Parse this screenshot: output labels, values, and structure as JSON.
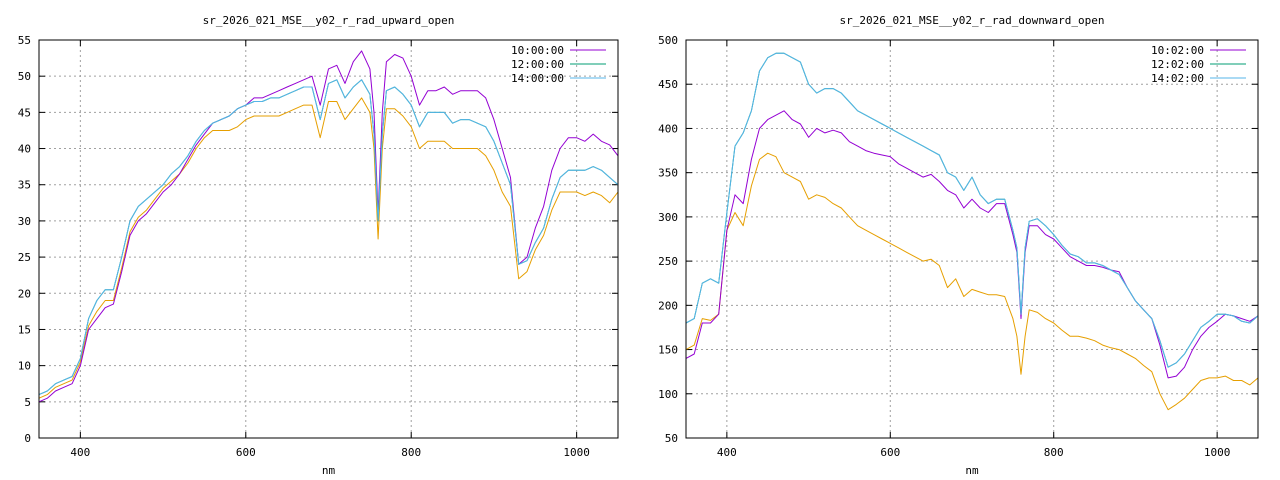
{
  "chart_data": [
    {
      "type": "line",
      "title": "sr_2026_021_MSE__y02_r_rad_upward_open",
      "xlabel": "nm",
      "ylabel": "",
      "xlim": [
        350,
        1050
      ],
      "ylim": [
        0,
        55
      ],
      "xticks": [
        400,
        600,
        800,
        1000
      ],
      "yticks": [
        0,
        5,
        10,
        15,
        20,
        25,
        30,
        35,
        40,
        45,
        50,
        55
      ],
      "grid": true,
      "legend_position": "top-right",
      "x": [
        350,
        360,
        370,
        380,
        390,
        400,
        410,
        420,
        430,
        440,
        450,
        460,
        470,
        480,
        490,
        500,
        510,
        520,
        530,
        540,
        550,
        560,
        570,
        580,
        590,
        600,
        610,
        620,
        630,
        640,
        650,
        660,
        670,
        680,
        690,
        700,
        710,
        720,
        730,
        740,
        750,
        755,
        760,
        765,
        770,
        780,
        790,
        800,
        810,
        820,
        830,
        840,
        850,
        860,
        870,
        880,
        890,
        900,
        910,
        920,
        930,
        940,
        950,
        960,
        970,
        980,
        990,
        1000,
        1010,
        1020,
        1030,
        1040,
        1050
      ],
      "series": [
        {
          "name": "10:00:00",
          "color": "#9400d3",
          "values": [
            5,
            5.5,
            6.5,
            7,
            7.5,
            10,
            15,
            16.5,
            18,
            18.5,
            23,
            28,
            30,
            31,
            32.5,
            34,
            35,
            36.5,
            38.5,
            40.5,
            42,
            43.5,
            44,
            44.5,
            45.5,
            46,
            47,
            47,
            47.5,
            48,
            48.5,
            49,
            49.5,
            50,
            46,
            51,
            51.5,
            49,
            52,
            53.5,
            51,
            45,
            31,
            45,
            52,
            53,
            52.5,
            50,
            46,
            48,
            48,
            48.5,
            47.5,
            48,
            48,
            48,
            47,
            44,
            40,
            36,
            24,
            25,
            29,
            32,
            37,
            40,
            41.5,
            41.5,
            41,
            42,
            41,
            40.5,
            39
          ]
        },
        {
          "name": "12:00:00",
          "color": "#009e73",
          "values": [
            6,
            6.5,
            7.5,
            8,
            8.5,
            11,
            16.5,
            19,
            20.5,
            20.5,
            25,
            30,
            32,
            33,
            34,
            35,
            36.5,
            37.5,
            39,
            41,
            42.5,
            43.5,
            44,
            44.5,
            45.5,
            46,
            46.5,
            46.5,
            47,
            47,
            47.5,
            48,
            48.5,
            48.5,
            44,
            49,
            49.5,
            47,
            48.5,
            49.5,
            47.5,
            42,
            30,
            42,
            48,
            48.5,
            47.5,
            46,
            43,
            45,
            45,
            45,
            43.5,
            44,
            44,
            43.5,
            43,
            41,
            38,
            35,
            24,
            24.5,
            27,
            29,
            33,
            36,
            37,
            37,
            37,
            37.5,
            37,
            36,
            35
          ]
        },
        {
          "name": "14:00:00",
          "color": "#56b4e9",
          "values": [
            6,
            6.5,
            7.5,
            8,
            8.5,
            11,
            16.5,
            19,
            20.5,
            20.5,
            25,
            30,
            32,
            33,
            34,
            35,
            36.5,
            37.5,
            39,
            41,
            42.5,
            43.5,
            44,
            44.5,
            45.5,
            46,
            46.5,
            46.5,
            47,
            47,
            47.5,
            48,
            48.5,
            48.5,
            44,
            49,
            49.5,
            47,
            48.5,
            49.5,
            47.5,
            42,
            30,
            42,
            48,
            48.5,
            47.5,
            46,
            43,
            45,
            45,
            45,
            43.5,
            44,
            44,
            43.5,
            43,
            41,
            38,
            35,
            24,
            24.5,
            27,
            29,
            33,
            36,
            37,
            37,
            37,
            37.5,
            37,
            36,
            35
          ]
        },
        {
          "name": "",
          "color": "#e69f00",
          "values": [
            5.5,
            6,
            7,
            7.5,
            8,
            10.5,
            15.5,
            17.5,
            19,
            19,
            23.5,
            28.5,
            30.5,
            31.5,
            33,
            34.5,
            35.5,
            36.5,
            38,
            40,
            41.5,
            42.5,
            42.5,
            42.5,
            43,
            44,
            44.5,
            44.5,
            44.5,
            44.5,
            45,
            45.5,
            46,
            46,
            41.5,
            46.5,
            46.5,
            44,
            45.5,
            47,
            45,
            40,
            27.5,
            40,
            45.5,
            45.5,
            44.5,
            43,
            40,
            41,
            41,
            41,
            40,
            40,
            40,
            40,
            39,
            37,
            34,
            32,
            22,
            23,
            26,
            28,
            31.5,
            34,
            34,
            34,
            33.5,
            34,
            33.5,
            32.5,
            34
          ]
        }
      ]
    },
    {
      "type": "line",
      "title": "sr_2026_021_MSE__y02_r_rad_downward_open",
      "xlabel": "nm",
      "ylabel": "",
      "xlim": [
        350,
        1050
      ],
      "ylim": [
        50,
        500
      ],
      "xticks": [
        400,
        600,
        800,
        1000
      ],
      "yticks": [
        50,
        100,
        150,
        200,
        250,
        300,
        350,
        400,
        450,
        500
      ],
      "grid": true,
      "legend_position": "top-right",
      "x": [
        350,
        360,
        370,
        380,
        390,
        400,
        410,
        420,
        430,
        440,
        450,
        460,
        470,
        480,
        490,
        500,
        510,
        520,
        530,
        540,
        550,
        560,
        570,
        580,
        590,
        600,
        610,
        620,
        630,
        640,
        650,
        660,
        670,
        680,
        690,
        700,
        710,
        720,
        730,
        740,
        750,
        755,
        760,
        765,
        770,
        780,
        790,
        800,
        810,
        820,
        830,
        840,
        850,
        860,
        870,
        880,
        890,
        900,
        910,
        920,
        930,
        940,
        950,
        960,
        970,
        980,
        990,
        1000,
        1010,
        1020,
        1030,
        1040,
        1050
      ],
      "series": [
        {
          "name": "10:02:00",
          "color": "#9400d3",
          "values": [
            140,
            145,
            180,
            180,
            190,
            285,
            325,
            315,
            365,
            400,
            410,
            415,
            420,
            410,
            405,
            390,
            400,
            395,
            398,
            395,
            385,
            380,
            375,
            372,
            370,
            368,
            360,
            355,
            350,
            345,
            348,
            340,
            330,
            325,
            310,
            320,
            310,
            305,
            315,
            315,
            280,
            260,
            185,
            260,
            290,
            290,
            280,
            275,
            265,
            255,
            250,
            245,
            245,
            243,
            240,
            238,
            220,
            205,
            195,
            185,
            155,
            118,
            120,
            130,
            150,
            165,
            175,
            182,
            190,
            188,
            185,
            182,
            188
          ]
        },
        {
          "name": "12:02:00",
          "color": "#009e73",
          "values": [
            180,
            185,
            225,
            230,
            225,
            305,
            380,
            395,
            420,
            465,
            480,
            485,
            485,
            480,
            475,
            450,
            440,
            445,
            445,
            440,
            430,
            420,
            415,
            410,
            405,
            400,
            395,
            390,
            385,
            380,
            375,
            370,
            350,
            345,
            330,
            345,
            325,
            315,
            320,
            320,
            285,
            265,
            190,
            265,
            295,
            298,
            290,
            280,
            268,
            258,
            255,
            248,
            248,
            245,
            240,
            235,
            220,
            205,
            195,
            185,
            160,
            130,
            135,
            145,
            160,
            175,
            182,
            190,
            190,
            188,
            182,
            180,
            188
          ]
        },
        {
          "name": "14:02:00",
          "color": "#56b4e9",
          "values": [
            180,
            185,
            225,
            230,
            225,
            305,
            380,
            395,
            420,
            465,
            480,
            485,
            485,
            480,
            475,
            450,
            440,
            445,
            445,
            440,
            430,
            420,
            415,
            410,
            405,
            400,
            395,
            390,
            385,
            380,
            375,
            370,
            350,
            345,
            330,
            345,
            325,
            315,
            320,
            320,
            285,
            265,
            190,
            265,
            295,
            298,
            290,
            280,
            268,
            258,
            255,
            248,
            248,
            245,
            240,
            235,
            220,
            205,
            195,
            185,
            160,
            130,
            135,
            145,
            160,
            175,
            182,
            190,
            190,
            188,
            182,
            180,
            188
          ]
        },
        {
          "name": "",
          "color": "#e69f00",
          "values": [
            150,
            155,
            185,
            183,
            190,
            285,
            305,
            290,
            335,
            365,
            372,
            368,
            350,
            345,
            340,
            320,
            325,
            322,
            315,
            310,
            300,
            290,
            285,
            280,
            275,
            270,
            265,
            260,
            255,
            250,
            252,
            245,
            220,
            230,
            210,
            218,
            215,
            212,
            212,
            210,
            185,
            165,
            122,
            165,
            195,
            192,
            185,
            180,
            172,
            165,
            165,
            163,
            160,
            155,
            152,
            150,
            145,
            140,
            132,
            125,
            100,
            82,
            88,
            95,
            105,
            115,
            118,
            118,
            120,
            115,
            115,
            110,
            118
          ]
        }
      ]
    }
  ]
}
